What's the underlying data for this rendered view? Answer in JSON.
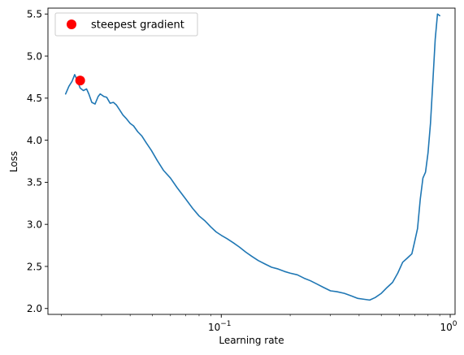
{
  "chart_data": {
    "type": "line",
    "xlabel": "Learning rate",
    "ylabel": "Loss",
    "xscale": "log",
    "xlim": [
      0.0175,
      1.05
    ],
    "ylim": [
      1.93,
      5.57
    ],
    "grid": false,
    "legend_position": "top-left",
    "x_ticks": [
      {
        "value": 0.1,
        "base": "10",
        "exp": "−1"
      },
      {
        "value": 1.0,
        "base": "10",
        "exp": "0"
      }
    ],
    "y_ticks": [
      {
        "value": 2.0,
        "label": "2.0"
      },
      {
        "value": 2.5,
        "label": "2.5"
      },
      {
        "value": 3.0,
        "label": "3.0"
      },
      {
        "value": 3.5,
        "label": "3.5"
      },
      {
        "value": 4.0,
        "label": "4.0"
      },
      {
        "value": 4.5,
        "label": "4.5"
      },
      {
        "value": 5.0,
        "label": "5.0"
      },
      {
        "value": 5.5,
        "label": "5.5"
      }
    ],
    "series": [
      {
        "color": "#1f77b4",
        "x": [
          0.0209,
          0.0216,
          0.0223,
          0.0229,
          0.0236,
          0.0242,
          0.025,
          0.0258,
          0.0264,
          0.0272,
          0.0281,
          0.029,
          0.0296,
          0.0307,
          0.0316,
          0.0327,
          0.0338,
          0.0348,
          0.036,
          0.0372,
          0.0384,
          0.04,
          0.0414,
          0.0432,
          0.045,
          0.047,
          0.0495,
          0.0525,
          0.056,
          0.06,
          0.064,
          0.07,
          0.075,
          0.08,
          0.085,
          0.09,
          0.095,
          0.1,
          0.106,
          0.113,
          0.12,
          0.128,
          0.136,
          0.145,
          0.155,
          0.166,
          0.177,
          0.189,
          0.2,
          0.215,
          0.23,
          0.245,
          0.262,
          0.28,
          0.3,
          0.32,
          0.345,
          0.37,
          0.395,
          0.42,
          0.445,
          0.47,
          0.5,
          0.53,
          0.56,
          0.59,
          0.62,
          0.65,
          0.68,
          0.7,
          0.72,
          0.74,
          0.76,
          0.78,
          0.8,
          0.82,
          0.84,
          0.86,
          0.88,
          0.9
        ],
        "y": [
          4.55,
          4.64,
          4.7,
          4.78,
          4.7,
          4.62,
          4.59,
          4.61,
          4.55,
          4.45,
          4.43,
          4.52,
          4.55,
          4.52,
          4.51,
          4.44,
          4.45,
          4.42,
          4.36,
          4.3,
          4.26,
          4.2,
          4.17,
          4.1,
          4.05,
          3.97,
          3.88,
          3.76,
          3.64,
          3.55,
          3.44,
          3.3,
          3.19,
          3.1,
          3.04,
          2.97,
          2.91,
          2.87,
          2.83,
          2.78,
          2.73,
          2.67,
          2.62,
          2.57,
          2.53,
          2.49,
          2.47,
          2.44,
          2.42,
          2.4,
          2.36,
          2.33,
          2.29,
          2.25,
          2.21,
          2.2,
          2.18,
          2.15,
          2.12,
          2.11,
          2.1,
          2.13,
          2.18,
          2.25,
          2.31,
          2.42,
          2.55,
          2.6,
          2.65,
          2.8,
          2.95,
          3.3,
          3.55,
          3.62,
          3.85,
          4.2,
          4.7,
          5.2,
          5.5,
          5.48
        ]
      }
    ],
    "marker": {
      "x": 0.0242,
      "y": 4.71,
      "color": "#ff0000",
      "legend_label": "steepest gradient"
    }
  }
}
